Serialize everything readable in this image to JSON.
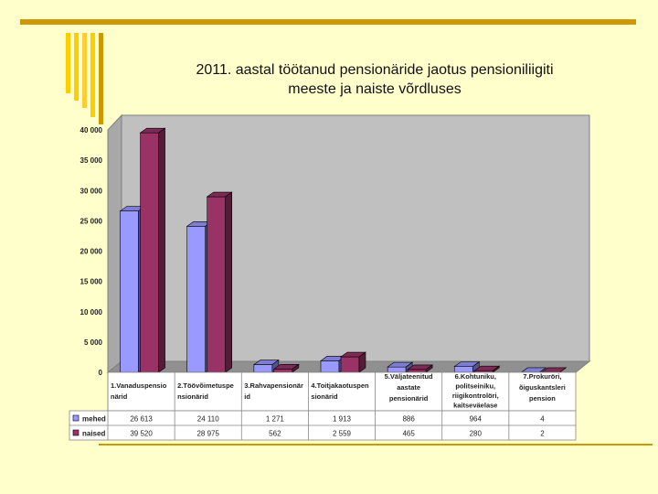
{
  "slide": {
    "title_line1": "2011. aastal töötanud pensionäride jaotus pensioniliigiti",
    "title_line2": "meeste ja naiste võrdluses",
    "accent_color": "#CC9900",
    "background_color": "#FFFFCC"
  },
  "chart_data": {
    "type": "bar",
    "style": "3d-clustered-column-with-data-table",
    "title": "2011. aastal töötanud pensionäride jaotus pensioniliigiti meeste ja naiste võrdluses",
    "categories": [
      [
        "1.Vanaduspensio",
        "närid"
      ],
      [
        "2.Töövõimetuspe",
        "nsionärid"
      ],
      [
        "3.Rahvapensionär",
        "id"
      ],
      [
        "4.Toitjakaotuspen",
        "sionärid"
      ],
      [
        "5.Väljateenitud",
        "aastate",
        "pensionärid"
      ],
      [
        "6.Kohtuniku,",
        "politseiniku,",
        "riigikontrolöri,",
        "kaitseväelase"
      ],
      [
        "7.Prokuröri,",
        "õiguskantsleri",
        "pension"
      ]
    ],
    "ylim": [
      0,
      40000
    ],
    "yticks": [
      "40 000",
      "35 000",
      "30 000",
      "25 000",
      "20 000",
      "15 000",
      "10 000",
      "5 000",
      "0"
    ],
    "series": [
      {
        "name": "mehed",
        "color": "#9999FF",
        "values": [
          26613,
          24110,
          1271,
          1913,
          886,
          964,
          4
        ],
        "labels": [
          "26 613",
          "24 110",
          "1 271",
          "1 913",
          "886",
          "964",
          "4"
        ]
      },
      {
        "name": "naised",
        "color": "#993366",
        "values": [
          39520,
          28975,
          562,
          2559,
          465,
          280,
          2
        ],
        "labels": [
          "39 520",
          "28 975",
          "562",
          "2 559",
          "465",
          "280",
          "2"
        ]
      }
    ],
    "grid": false,
    "legend": "data-table-left"
  }
}
